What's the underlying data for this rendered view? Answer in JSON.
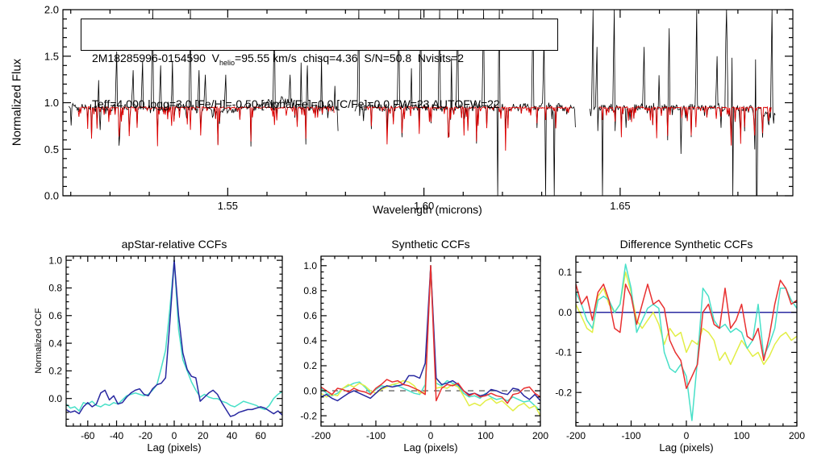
{
  "annotation": {
    "id_pre": "2M18285996-0154590  V",
    "sub": "helio",
    "line1_post": "=95.55 km/s  chisq=4.36  S/N=50.8  Nvisits=2",
    "line2": "Teff=4,000 logg=3.0 [Fe/H]=-0.50 [alpha/Fe]=0.0 [C/Fe]=0.0 FW=23 AUTOFW=22"
  },
  "chart_data": [
    {
      "type": "line",
      "title": "",
      "xlabel": "Wavelength (microns)",
      "ylabel": "Normalized Flux",
      "xlim": [
        1.508,
        1.694
      ],
      "ylim": [
        0.0,
        2.0
      ],
      "xticks": [
        1.55,
        1.6,
        1.65
      ],
      "xtick_labels": [
        "1.55",
        "1.60",
        "1.65"
      ],
      "x_minor": 0.01,
      "yticks": [
        0.0,
        0.5,
        1.0,
        1.5,
        2.0
      ],
      "ytick_labels": [
        "0.0",
        "0.5",
        "1.0",
        "1.5",
        "2.0"
      ],
      "y_minor": 0.1,
      "grid": false,
      "kind": "spectrum",
      "series": [
        {
          "name": "observed-spectrum",
          "color": "#000000"
        },
        {
          "name": "synthetic-spectrum",
          "color": "#dd0000"
        }
      ],
      "segments": [
        [
          1.5095,
          1.578
        ],
        [
          1.5824,
          1.6386
        ],
        [
          1.6423,
          1.6895
        ]
      ],
      "continuum": 0.95,
      "spikes_up": [
        [
          1.5218,
          1.55
        ],
        [
          1.526,
          1.35
        ],
        [
          1.5283,
          1.45
        ],
        [
          1.531,
          2.0
        ],
        [
          1.5329,
          1.4
        ],
        [
          1.536,
          1.45
        ],
        [
          1.5406,
          2.0
        ],
        [
          1.5427,
          1.35
        ],
        [
          1.5443,
          1.3
        ],
        [
          1.5495,
          1.3
        ],
        [
          1.5618,
          1.9
        ],
        [
          1.566,
          1.3
        ],
        [
          1.5704,
          1.4
        ],
        [
          1.5834,
          2.0
        ],
        [
          1.5936,
          2.0
        ],
        [
          1.5992,
          2.0
        ],
        [
          1.6039,
          2.0
        ],
        [
          1.6086,
          2.0
        ],
        [
          1.6152,
          2.0
        ],
        [
          1.6193,
          2.0
        ],
        [
          1.6279,
          2.0
        ],
        [
          1.6306,
          1.7
        ],
        [
          1.6431,
          2.0
        ],
        [
          1.6441,
          1.6
        ],
        [
          1.6486,
          2.0
        ],
        [
          1.6562,
          1.6
        ],
        [
          1.6624,
          1.8
        ],
        [
          1.6696,
          2.0
        ],
        [
          1.6747,
          1.5
        ],
        [
          1.6772,
          2.0
        ],
        [
          1.6788,
          2.0
        ],
        [
          1.6846,
          2.0
        ],
        [
          1.6887,
          2.0
        ]
      ],
      "spikes_down": [
        [
          1.6188,
          0.0
        ],
        [
          1.631,
          0.0
        ],
        [
          1.6332,
          0.0
        ],
        [
          1.6456,
          0.0
        ],
        [
          1.6655,
          0.45
        ],
        [
          1.6788,
          0.0
        ],
        [
          1.6846,
          0.0
        ],
        [
          1.685,
          0.0
        ]
      ]
    },
    {
      "type": "line",
      "title": "apStar-relative CCFs",
      "xlabel": "Lag (pixels)",
      "ylabel": "Normalized CCF",
      "xlim": [
        -75,
        75
      ],
      "ylim": [
        -0.2,
        1.03
      ],
      "xticks": [
        -60,
        -40,
        -20,
        0,
        20,
        40,
        60
      ],
      "xtick_labels": [
        "-60",
        "-40",
        "-20",
        "0",
        "20",
        "40",
        "60"
      ],
      "x_minor": 5,
      "yticks": [
        0.0,
        0.2,
        0.4,
        0.6,
        0.8,
        1.0
      ],
      "ytick_labels": [
        "0.0",
        "0.2",
        "0.4",
        "0.6",
        "0.8",
        "1.0"
      ],
      "y_minor": 0.05,
      "grid": false,
      "x_start": -75,
      "x_step": 3,
      "series": [
        {
          "name": "ccf-visit-2",
          "color": "#48e0c8",
          "values": [
            -0.04,
            -0.07,
            -0.06,
            -0.09,
            -0.03,
            -0.04,
            -0.02,
            -0.05,
            -0.06,
            -0.04,
            -0.05,
            -0.03,
            -0.04,
            -0.01,
            0.02,
            0.03,
            0.04,
            0.03,
            0.02,
            0.03,
            0.06,
            0.1,
            0.22,
            0.35,
            0.65,
            1.0,
            0.5,
            0.28,
            0.2,
            0.12,
            0.06,
            0.01,
            0.03,
            0.01,
            0.0,
            0.0,
            -0.02,
            -0.03,
            -0.05,
            -0.06,
            -0.04,
            -0.02,
            -0.03,
            -0.04,
            -0.05,
            -0.07,
            -0.08,
            -0.05,
            0.0,
            0.03,
            0.05
          ]
        },
        {
          "name": "ccf-visit-1",
          "color": "#2828a0",
          "values": [
            -0.08,
            -0.1,
            -0.09,
            -0.11,
            -0.06,
            -0.03,
            -0.06,
            -0.04,
            0.04,
            0.06,
            -0.01,
            0.02,
            -0.04,
            -0.03,
            0.01,
            0.04,
            0.06,
            0.07,
            0.03,
            0.02,
            0.07,
            0.1,
            0.11,
            0.15,
            0.55,
            1.0,
            0.6,
            0.33,
            0.21,
            0.16,
            0.15,
            -0.02,
            0.01,
            0.04,
            0.06,
            0.03,
            -0.03,
            -0.08,
            -0.13,
            -0.12,
            -0.1,
            -0.09,
            -0.08,
            -0.08,
            -0.07,
            -0.06,
            -0.07,
            -0.09,
            -0.11,
            -0.09,
            -0.12
          ]
        }
      ]
    },
    {
      "type": "line",
      "title": "Synthetic CCFs",
      "xlabel": "Lag (pixels)",
      "ylabel": "",
      "xlim": [
        -200,
        200
      ],
      "ylim": [
        -0.283,
        1.076
      ],
      "xticks": [
        -200,
        -100,
        0,
        100,
        200
      ],
      "xtick_labels": [
        "-200",
        "-100",
        "0",
        "100",
        "200"
      ],
      "x_minor": 25,
      "yticks": [
        -0.2,
        0.0,
        0.2,
        0.4,
        0.6,
        0.8,
        1.0
      ],
      "ytick_labels": [
        "-0.2",
        "0.0",
        "0.2",
        "0.4",
        "0.6",
        "0.8",
        "1.0"
      ],
      "y_minor": 0.05,
      "grid": false,
      "zero_dash": true,
      "x_start": -200,
      "x_step": 10,
      "series": [
        {
          "name": "syn-ccf-cyan",
          "color": "#48e0c8",
          "values": [
            0.02,
            -0.02,
            -0.04,
            -0.02,
            0.02,
            0.04,
            0.06,
            0.07,
            0.03,
            -0.02,
            0.01,
            0.04,
            0.03,
            0.05,
            0.04,
            0.02,
            0.0,
            -0.02,
            -0.03,
            0.05,
            1.0,
            0.06,
            0.04,
            0.08,
            0.06,
            0.04,
            -0.02,
            -0.05,
            -0.04,
            -0.06,
            -0.02,
            -0.05,
            -0.07,
            -0.06,
            -0.08,
            -0.05,
            -0.07,
            -0.09,
            -0.08,
            -0.12,
            -0.16
          ]
        },
        {
          "name": "syn-ccf-yellow",
          "color": "#e2ee45",
          "values": [
            -0.02,
            -0.05,
            -0.03,
            -0.04,
            0.02,
            0.05,
            0.03,
            0.06,
            0.04,
            0.0,
            -0.02,
            0.01,
            0.03,
            0.05,
            0.06,
            0.08,
            0.07,
            0.04,
            -0.02,
            -0.01,
            1.0,
            0.02,
            0.03,
            0.02,
            0.05,
            0.03,
            -0.04,
            -0.12,
            -0.1,
            -0.12,
            -0.08,
            -0.06,
            -0.1,
            -0.08,
            -0.12,
            -0.16,
            -0.12,
            -0.1,
            -0.14,
            -0.12,
            -0.2
          ]
        },
        {
          "name": "syn-ccf-navy",
          "color": "#2828a0",
          "values": [
            -0.05,
            -0.03,
            -0.06,
            -0.08,
            -0.05,
            -0.02,
            0.0,
            -0.02,
            -0.04,
            -0.06,
            -0.02,
            0.02,
            0.04,
            0.03,
            0.04,
            0.05,
            0.12,
            0.12,
            0.1,
            0.22,
            1.0,
            0.1,
            0.05,
            0.06,
            0.08,
            0.05,
            0.0,
            -0.03,
            -0.02,
            -0.04,
            -0.03,
            0.01,
            0.0,
            -0.02,
            -0.03,
            0.02,
            0.01,
            -0.04,
            -0.07,
            -0.03,
            -0.08
          ]
        },
        {
          "name": "syn-ccf-red",
          "color": "#e83030",
          "values": [
            0.03,
            0.0,
            -0.03,
            0.02,
            0.01,
            -0.01,
            0.02,
            0.0,
            -0.01,
            -0.03,
            0.02,
            0.05,
            0.09,
            0.07,
            0.08,
            0.05,
            0.04,
            0.02,
            0.0,
            -0.03,
            1.0,
            -0.08,
            0.02,
            0.05,
            0.04,
            0.06,
            0.0,
            -0.04,
            -0.02,
            -0.05,
            -0.04,
            -0.02,
            -0.04,
            -0.05,
            -0.1,
            -0.03,
            -0.02,
            0.02,
            0.03,
            -0.02,
            -0.05
          ]
        }
      ]
    },
    {
      "type": "line",
      "title": "Difference Synthetic CCFs",
      "xlabel": "Lag (pixels)",
      "ylabel": "",
      "xlim": [
        -200,
        200
      ],
      "ylim": [
        -0.284,
        0.14
      ],
      "xticks": [
        -200,
        -100,
        0,
        100,
        200
      ],
      "xtick_labels": [
        "-200",
        "-100",
        "0",
        "100",
        "200"
      ],
      "x_minor": 25,
      "yticks": [
        0.1,
        0.0,
        -0.1,
        -0.2
      ],
      "ytick_labels": [
        "0.1",
        "0.0",
        "-0.1",
        "-0.2"
      ],
      "y_minor": 0.025,
      "grid": false,
      "x_start": -200,
      "x_step": 10,
      "series": [
        {
          "name": "diff-ccf-navy-zero",
          "color": "#2828a0",
          "values": [
            0,
            0,
            0,
            0,
            0,
            0,
            0,
            0,
            0,
            0,
            0,
            0,
            0,
            0,
            0,
            0,
            0,
            0,
            0,
            0,
            0,
            0,
            0,
            0,
            0,
            0,
            0,
            0,
            0,
            0,
            0,
            0,
            0,
            0,
            0,
            0,
            0,
            0,
            0,
            0,
            0
          ]
        },
        {
          "name": "diff-ccf-yellow",
          "color": "#e2ee45",
          "values": [
            0.02,
            -0.01,
            -0.04,
            -0.05,
            0.04,
            0.06,
            0.02,
            0.0,
            0.02,
            0.1,
            0.05,
            -0.02,
            -0.04,
            -0.02,
            0.0,
            -0.03,
            -0.08,
            -0.04,
            -0.06,
            -0.05,
            -0.1,
            -0.07,
            -0.08,
            -0.04,
            -0.05,
            -0.07,
            -0.12,
            -0.1,
            -0.13,
            -0.1,
            -0.07,
            -0.09,
            -0.11,
            -0.1,
            -0.13,
            -0.11,
            -0.08,
            -0.06,
            -0.05,
            -0.07,
            -0.06
          ]
        },
        {
          "name": "diff-ccf-cyan",
          "color": "#48e0c8",
          "values": [
            0.05,
            0.02,
            -0.02,
            -0.04,
            0.03,
            0.04,
            0.03,
            0.0,
            0.02,
            0.12,
            0.06,
            -0.05,
            -0.02,
            0.01,
            0.02,
            0.01,
            -0.1,
            -0.14,
            -0.15,
            -0.13,
            -0.16,
            -0.27,
            -0.12,
            0.06,
            0.04,
            -0.02,
            -0.04,
            -0.03,
            -0.05,
            -0.04,
            -0.05,
            -0.09,
            -0.07,
            0.02,
            -0.11,
            -0.08,
            -0.04,
            0.06,
            0.06,
            0.03,
            0.01
          ]
        },
        {
          "name": "diff-ccf-red",
          "color": "#e83030",
          "values": [
            0.07,
            0.02,
            0.04,
            -0.02,
            0.05,
            0.07,
            0.03,
            -0.04,
            -0.05,
            0.07,
            0.04,
            -0.03,
            0.02,
            0.07,
            0.02,
            0.03,
            0.01,
            -0.07,
            -0.1,
            -0.12,
            -0.19,
            -0.16,
            -0.13,
            0.0,
            0.02,
            -0.03,
            -0.04,
            0.06,
            -0.04,
            -0.02,
            0.02,
            -0.06,
            -0.07,
            -0.04,
            -0.12,
            -0.06,
            0.02,
            0.08,
            0.06,
            0.02,
            0.03
          ]
        }
      ]
    }
  ]
}
